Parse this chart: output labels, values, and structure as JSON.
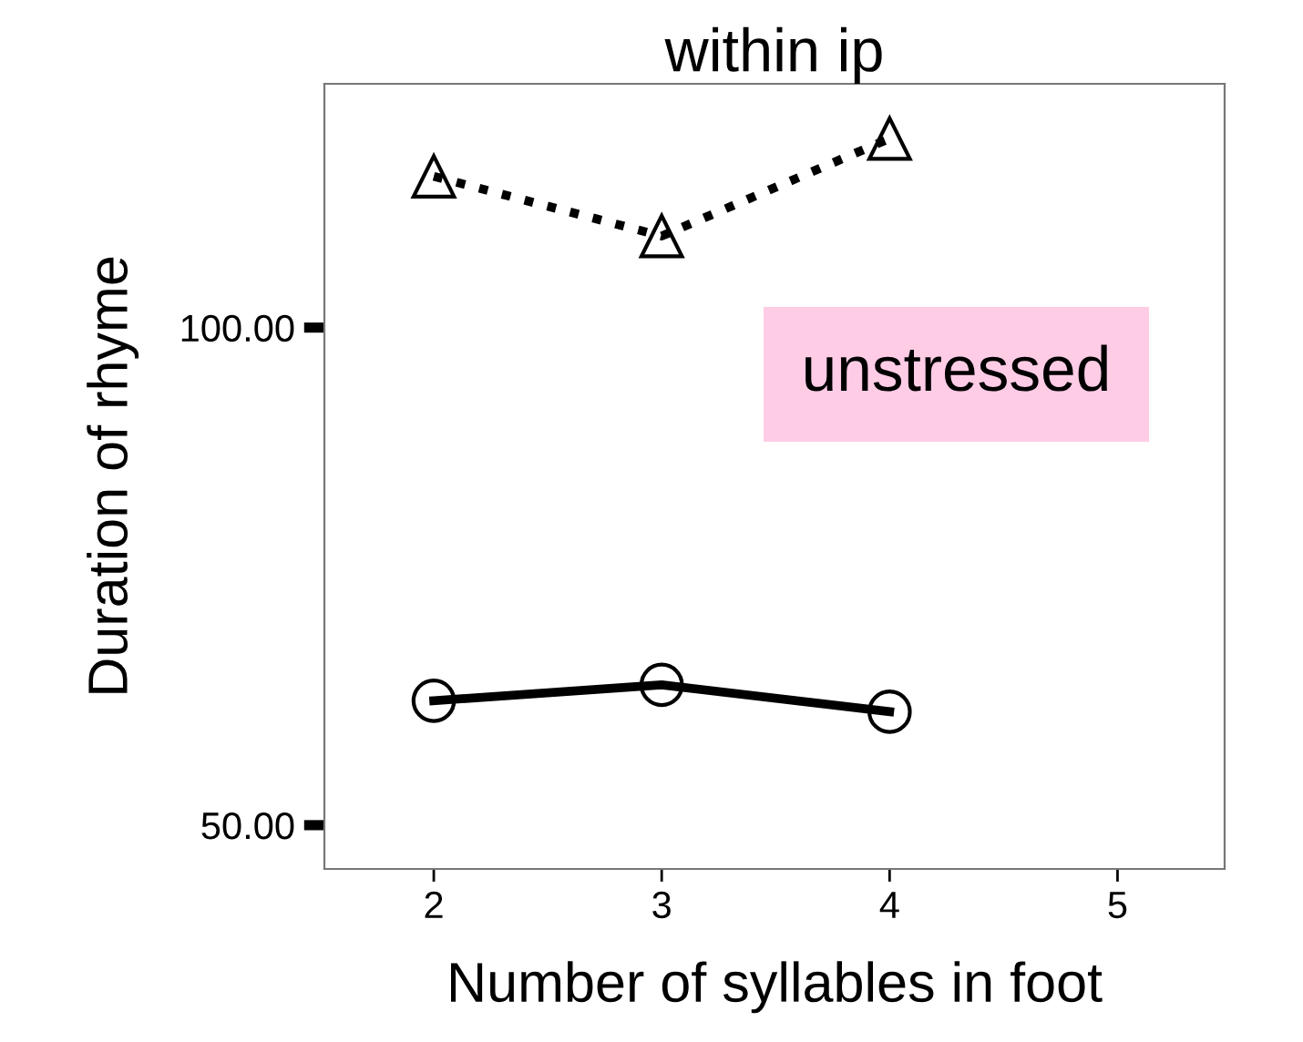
{
  "chart_data": {
    "type": "line",
    "title": "within ip",
    "xlabel": "Number of syllables in foot",
    "ylabel": "Duration of rhyme",
    "x": [
      2,
      3,
      4
    ],
    "series": [
      {
        "color": "#000000",
        "values": [
          115.2,
          109.2,
          119.0
        ],
        "marker": "triangle",
        "line_style": "dotted"
      },
      {
        "color": "#000000",
        "values": [
          62.5,
          64.1,
          61.4
        ],
        "marker": "circle",
        "line_style": "solid"
      }
    ],
    "xlim": [
      1.52,
      5.47
    ],
    "xticks": [
      2,
      3,
      4,
      5
    ],
    "ylim": [
      45.6,
      124.5
    ],
    "yticks": [
      {
        "value": 50,
        "label": "50.00"
      },
      {
        "value": 100,
        "label": "100.00"
      }
    ],
    "annotations": [
      "unstressed"
    ],
    "grid": false,
    "legend": false
  }
}
